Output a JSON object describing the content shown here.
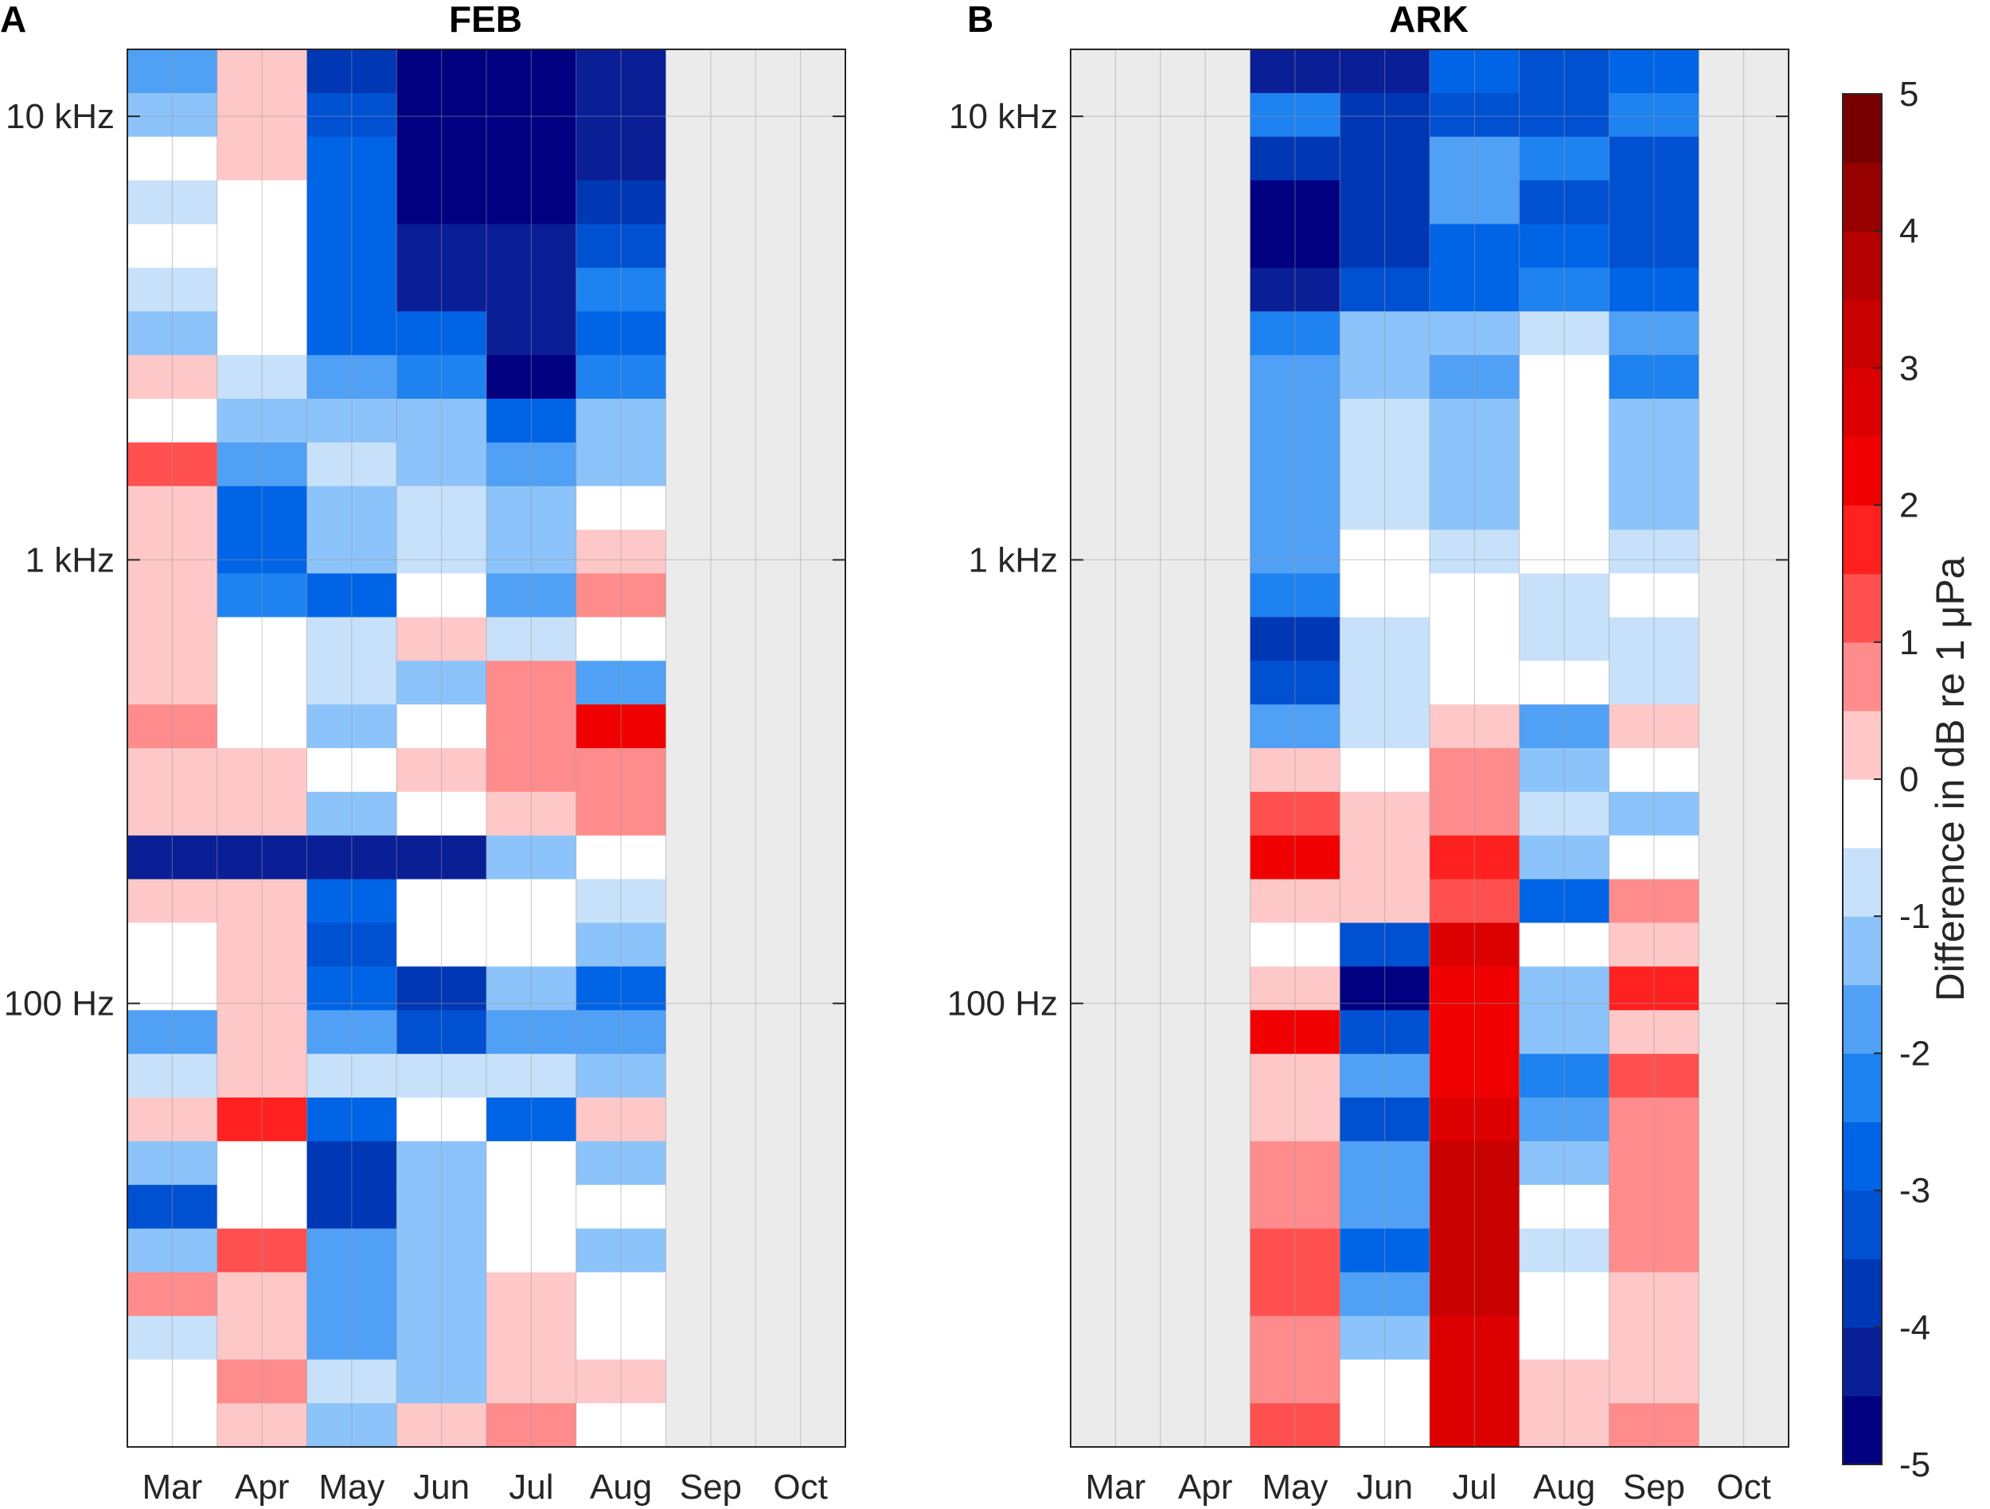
{
  "chart_data": [
    {
      "type": "heatmap",
      "panel_letter": "A",
      "title": "FEB",
      "x_categories": [
        "Mar",
        "Apr",
        "May",
        "Jun",
        "Jul",
        "Aug",
        "Sep",
        "Oct"
      ],
      "y_scale": "log",
      "y_ticks": [
        {
          "value": 100,
          "label": "100 Hz"
        },
        {
          "value": 1000,
          "label": "1 kHz"
        },
        {
          "value": 10000,
          "label": "10 kHz"
        }
      ],
      "n_rows": 32,
      "no_data_color": "#ebebeb",
      "columns": [
        [
          -2,
          -1.5,
          -0.5,
          -1,
          -0.5,
          -1,
          -1.5,
          0,
          -0.5,
          1,
          0,
          0,
          0,
          0,
          0,
          0.5,
          0,
          0,
          -4.5,
          0,
          -0.5,
          -0.5,
          -2,
          -1,
          0,
          -1.5,
          -3.5,
          -1.5,
          0.5,
          -1,
          -0.5,
          -0.5
        ],
        [
          0,
          0,
          0,
          -0.5,
          -0.5,
          -0.5,
          -0.5,
          -1,
          -1.5,
          -2,
          -3,
          -3,
          -2.5,
          -0.5,
          -0.5,
          -0.5,
          0,
          0,
          -4.5,
          0,
          0,
          0,
          0,
          0,
          1.5,
          -0.5,
          -0.5,
          1,
          0,
          0,
          0.5,
          0
        ],
        [
          -4,
          -3.5,
          -3,
          -3,
          -3,
          -3,
          -3,
          -2,
          -1.5,
          -1,
          -1.5,
          -1.5,
          -3,
          -1,
          -1,
          -1.5,
          -0.5,
          -1.5,
          -4.5,
          -3,
          -3.5,
          -3,
          -2,
          -1,
          -3,
          -4,
          -4,
          -2,
          -2,
          -2,
          -1,
          -1.5
        ],
        [
          -5,
          -5,
          -5,
          -5,
          -4.5,
          -4.5,
          -3,
          -2.5,
          -1.5,
          -1.5,
          -1,
          -1,
          -0.5,
          0,
          -1.5,
          -0.5,
          0,
          -0.5,
          -4.5,
          -0.5,
          -0.5,
          -4,
          -3.5,
          -1,
          -0.5,
          -1.5,
          -1.5,
          -1.5,
          -1.5,
          -1.5,
          -1.5,
          0
        ],
        [
          -5,
          -5,
          -5,
          -5,
          -4.5,
          -4.5,
          -4.5,
          -5,
          -3,
          -2,
          -1.5,
          -1.5,
          -2,
          -1,
          0.5,
          0.5,
          0.5,
          0,
          -1.5,
          -0.5,
          -0.5,
          -1.5,
          -2,
          -1,
          -3,
          -0.5,
          -0.5,
          -0.5,
          0,
          0,
          0,
          0.5
        ],
        [
          -4.5,
          -4.5,
          -4.5,
          -4,
          -3.5,
          -2.5,
          -3,
          -2.5,
          -1.5,
          -1.5,
          -0.5,
          0,
          0.5,
          -0.5,
          -2,
          2,
          0.5,
          0.5,
          -0.5,
          -1,
          -1.5,
          -3,
          -2,
          -1.5,
          0,
          -1.5,
          -0.5,
          -1.5,
          -0.5,
          -0.5,
          0,
          -0.5
        ],
        null,
        null
      ]
    },
    {
      "type": "heatmap",
      "panel_letter": "B",
      "title": "ARK",
      "x_categories": [
        "Mar",
        "Apr",
        "May",
        "Jun",
        "Jul",
        "Aug",
        "Sep",
        "Oct"
      ],
      "y_scale": "log",
      "y_ticks": [
        {
          "value": 100,
          "label": "100 Hz"
        },
        {
          "value": 1000,
          "label": "1 kHz"
        },
        {
          "value": 10000,
          "label": "10 kHz"
        }
      ],
      "n_rows": 32,
      "no_data_color": "#ebebeb",
      "columns": [
        null,
        null,
        [
          -4.5,
          -2.5,
          -4,
          -5,
          -5,
          -4.5,
          -2.5,
          -2,
          -2,
          -2,
          -2,
          -2,
          -2.5,
          -4,
          -3.5,
          -2,
          0,
          1,
          2,
          0,
          -0.5,
          0,
          2,
          0,
          0,
          0.5,
          0.5,
          1,
          1,
          0.5,
          0.5,
          1
        ],
        [
          -4.5,
          -4,
          -4,
          -4,
          -4,
          -3.5,
          -1.5,
          -1.5,
          -1,
          -1,
          -1,
          -0.5,
          -0.5,
          -1,
          -1,
          -1,
          -0.5,
          0,
          0,
          0,
          -3.5,
          -5,
          -3.5,
          -2,
          -3.5,
          -2,
          -2,
          -3,
          -2,
          -1.5,
          -0.5,
          -0.5
        ],
        [
          -3,
          -3.5,
          -2,
          -2,
          -3,
          -3,
          -1.5,
          -2,
          -1.5,
          -1.5,
          -1.5,
          -1,
          -0.5,
          -0.5,
          -0.5,
          0,
          0.5,
          0.5,
          1.5,
          1,
          2.5,
          2,
          2,
          2,
          2.5,
          3,
          3,
          3,
          3,
          2.5,
          2.5,
          2.5
        ],
        [
          -3.5,
          -3.5,
          -2.5,
          -3.5,
          -3,
          -2.5,
          -1,
          -0.5,
          -0.5,
          -0.5,
          -0.5,
          -0.5,
          -1,
          -1,
          -0.5,
          -2,
          -1.5,
          -1,
          -1.5,
          -3,
          -0.5,
          -1.5,
          -1.5,
          -2.5,
          -2,
          -1.5,
          -0.5,
          -1,
          -0.5,
          -0.5,
          0,
          0
        ],
        [
          -3,
          -2.5,
          -3.5,
          -3.5,
          -3.5,
          -3,
          -2,
          -2.5,
          -1.5,
          -1.5,
          -1.5,
          -1,
          -0.5,
          -1,
          -1,
          0,
          -0.5,
          -1.5,
          -0.5,
          0.5,
          0,
          1.5,
          0,
          1,
          0.5,
          0.5,
          0.5,
          0.5,
          0,
          0,
          0,
          0.5
        ],
        null
      ]
    }
  ],
  "colorbar": {
    "label": "Difference in dB re 1 μPa",
    "range": [
      -5,
      5
    ],
    "tick_labels": [
      "5",
      "4",
      "3",
      "2",
      "1",
      "0",
      "-1",
      "-2",
      "-3",
      "-4",
      "-5"
    ],
    "colors": [
      "#000080",
      "#0a1e96",
      "#0037b4",
      "#0050d2",
      "#0064e6",
      "#1e82f0",
      "#50a0f5",
      "#8cc3fa",
      "#c8e1fa",
      "#ffffff",
      "#ffc8c8",
      "#ff8c8c",
      "#ff5050",
      "#ff2020",
      "#f00000",
      "#dc0000",
      "#c80000",
      "#b40000",
      "#960000",
      "#780000"
    ]
  }
}
